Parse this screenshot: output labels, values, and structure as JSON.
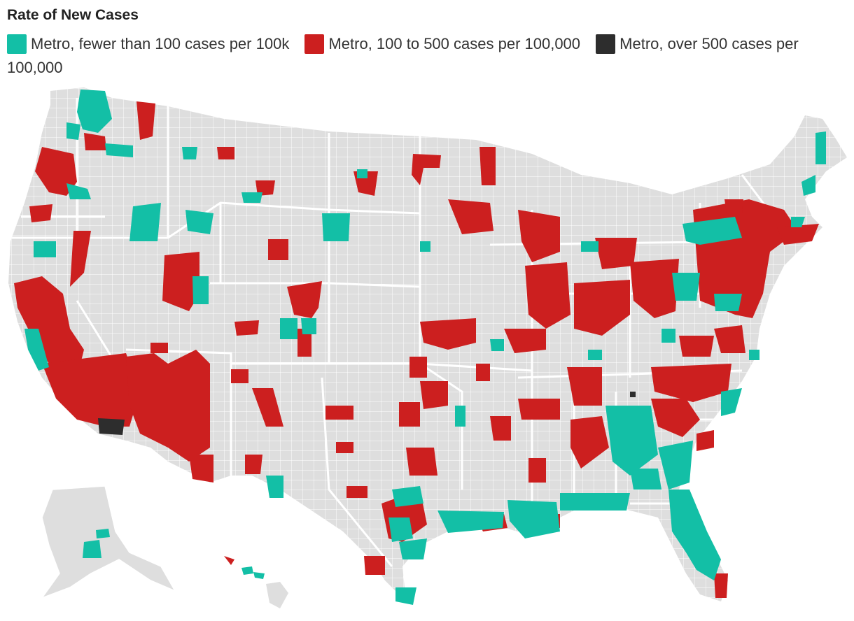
{
  "title": "Rate of New Cases",
  "legend": [
    {
      "label": "Metro, fewer than 100 cases per 100k",
      "color": "#13bfa6"
    },
    {
      "label": "Metro, 100 to 500 cases per 100,000",
      "color": "#cc1f1f"
    },
    {
      "label": "Metro, over 500 cases per 100,000",
      "color": "#2d2d2d"
    }
  ],
  "colors": {
    "land": "#dedede",
    "border": "#ffffff",
    "low": "#13bfa6",
    "mid": "#cc1f1f",
    "high": "#2d2d2d"
  }
}
